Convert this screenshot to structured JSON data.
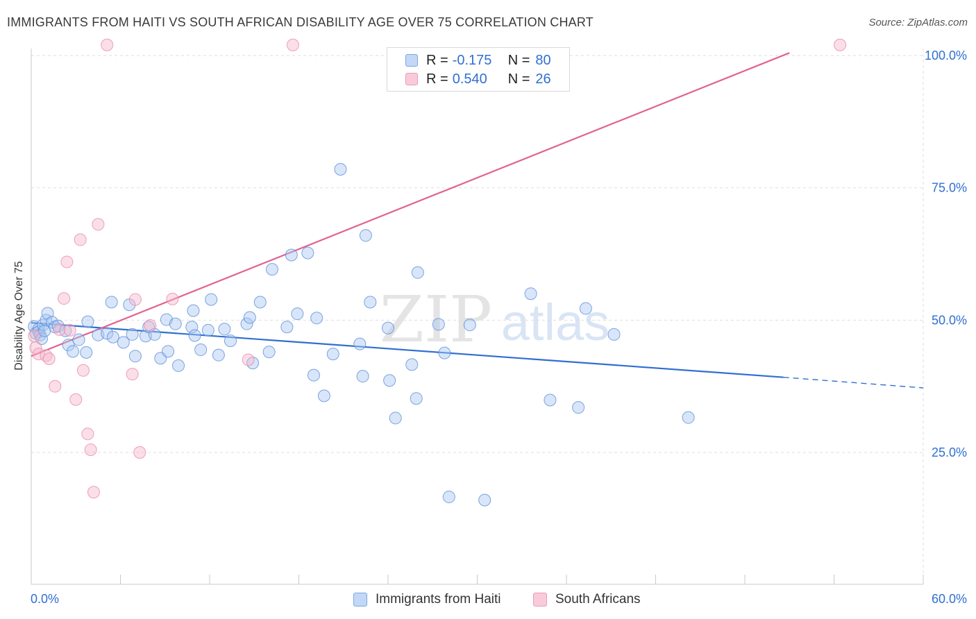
{
  "header": {
    "title": "IMMIGRANTS FROM HAITI VS SOUTH AFRICAN DISABILITY AGE OVER 75 CORRELATION CHART",
    "source": "Source: ZipAtlas.com"
  },
  "watermark": {
    "zip": "ZIP",
    "atlas": "atlas"
  },
  "legend": {
    "rows": [
      {
        "r_label": "R =",
        "r_value": "-0.175",
        "n_label": "N =",
        "n_value": "80",
        "color": "#aac8f2"
      },
      {
        "r_label": "R =",
        "r_value": "0.540",
        "n_label": "N =",
        "n_value": "26",
        "color": "#f6b7cc"
      }
    ]
  },
  "chart_data": {
    "type": "scatter",
    "title": "IMMIGRANTS FROM HAITI VS SOUTH AFRICAN DISABILITY AGE OVER 75 CORRELATION CHART",
    "xlabel": "",
    "ylabel": "Disability Age Over 75",
    "xlim": [
      0,
      60
    ],
    "ylim": [
      0,
      102
    ],
    "x_tick_labels": [
      "0.0%",
      "60.0%"
    ],
    "y_tick_labels": [
      "25.0%",
      "50.0%",
      "75.0%",
      "100.0%"
    ],
    "y_ticks": [
      25,
      50,
      75,
      100
    ],
    "grid": true,
    "legend_position": "top-center",
    "series": [
      {
        "name": "Immigrants from Haiti",
        "color": "#5b8fd8",
        "fill": "#aac8f2",
        "line_color": "#2f6fd1",
        "trend": {
          "x0": 0,
          "y0": 49.5,
          "x1": 50.6,
          "y1": 39.2,
          "dash_to_x": 60,
          "dash_to_y": 37.2
        },
        "points": [
          [
            0.2,
            48.8
          ],
          [
            0.3,
            47.5
          ],
          [
            0.5,
            48.3
          ],
          [
            0.5,
            47.8
          ],
          [
            0.6,
            47.2
          ],
          [
            0.7,
            46.5
          ],
          [
            0.8,
            49.1
          ],
          [
            0.9,
            48.0
          ],
          [
            1.0,
            50.0
          ],
          [
            1.1,
            51.3
          ],
          [
            1.4,
            49.6
          ],
          [
            1.6,
            48.7
          ],
          [
            1.8,
            48.9
          ],
          [
            2.3,
            48.0
          ],
          [
            2.5,
            45.3
          ],
          [
            2.8,
            44.1
          ],
          [
            3.2,
            46.3
          ],
          [
            3.7,
            43.9
          ],
          [
            3.8,
            49.7
          ],
          [
            4.5,
            47.2
          ],
          [
            5.1,
            47.5
          ],
          [
            5.4,
            53.4
          ],
          [
            5.5,
            46.8
          ],
          [
            6.2,
            45.8
          ],
          [
            6.6,
            52.9
          ],
          [
            6.8,
            47.3
          ],
          [
            7.0,
            43.2
          ],
          [
            7.7,
            47.0
          ],
          [
            7.9,
            48.7
          ],
          [
            8.3,
            47.3
          ],
          [
            8.7,
            42.8
          ],
          [
            9.1,
            50.1
          ],
          [
            9.2,
            44.1
          ],
          [
            9.7,
            49.3
          ],
          [
            9.9,
            41.4
          ],
          [
            10.8,
            48.7
          ],
          [
            10.9,
            51.8
          ],
          [
            11.0,
            47.1
          ],
          [
            11.4,
            44.4
          ],
          [
            11.9,
            48.1
          ],
          [
            12.1,
            53.9
          ],
          [
            12.6,
            43.4
          ],
          [
            13.0,
            48.3
          ],
          [
            13.4,
            46.1
          ],
          [
            14.5,
            49.3
          ],
          [
            14.7,
            50.5
          ],
          [
            14.9,
            41.9
          ],
          [
            15.4,
            53.4
          ],
          [
            16.0,
            44.0
          ],
          [
            16.2,
            59.6
          ],
          [
            17.2,
            48.7
          ],
          [
            17.5,
            62.3
          ],
          [
            17.9,
            51.2
          ],
          [
            18.6,
            62.7
          ],
          [
            19.0,
            39.6
          ],
          [
            19.2,
            50.4
          ],
          [
            19.7,
            35.7
          ],
          [
            20.3,
            43.6
          ],
          [
            20.8,
            78.5
          ],
          [
            22.1,
            45.5
          ],
          [
            22.3,
            39.4
          ],
          [
            22.5,
            66.0
          ],
          [
            22.8,
            53.4
          ],
          [
            24.0,
            48.5
          ],
          [
            24.1,
            38.6
          ],
          [
            24.5,
            31.5
          ],
          [
            25.6,
            41.6
          ],
          [
            25.9,
            35.2
          ],
          [
            26.0,
            59.0
          ],
          [
            27.4,
            49.2
          ],
          [
            27.8,
            43.8
          ],
          [
            28.1,
            16.6
          ],
          [
            29.5,
            49.1
          ],
          [
            30.5,
            16.0
          ],
          [
            33.6,
            55.0
          ],
          [
            34.9,
            34.9
          ],
          [
            36.8,
            33.5
          ],
          [
            37.3,
            52.2
          ],
          [
            39.2,
            47.3
          ],
          [
            44.2,
            31.6
          ]
        ]
      },
      {
        "name": "South Africans",
        "color": "#e889a8",
        "fill": "#f6b7cc",
        "line_color": "#e2638d",
        "trend": {
          "x0": 0,
          "y0": 43.2,
          "x1": 51.0,
          "y1": 100.5
        },
        "points": [
          [
            0.2,
            47.0
          ],
          [
            0.3,
            44.8
          ],
          [
            0.5,
            43.6
          ],
          [
            1.0,
            43.3
          ],
          [
            1.2,
            42.7
          ],
          [
            1.6,
            37.5
          ],
          [
            1.9,
            48.2
          ],
          [
            2.2,
            54.1
          ],
          [
            2.4,
            61.0
          ],
          [
            2.6,
            48.1
          ],
          [
            3.0,
            35.0
          ],
          [
            3.3,
            65.2
          ],
          [
            3.5,
            40.5
          ],
          [
            3.8,
            28.5
          ],
          [
            4.0,
            25.5
          ],
          [
            4.2,
            17.5
          ],
          [
            4.5,
            68.1
          ],
          [
            5.1,
            102.0
          ],
          [
            6.8,
            39.8
          ],
          [
            7.0,
            53.9
          ],
          [
            7.3,
            25.0
          ],
          [
            8.0,
            49.0
          ],
          [
            9.5,
            54.0
          ],
          [
            14.6,
            42.5
          ],
          [
            17.6,
            102.0
          ],
          [
            54.4,
            102.0
          ]
        ]
      }
    ]
  }
}
